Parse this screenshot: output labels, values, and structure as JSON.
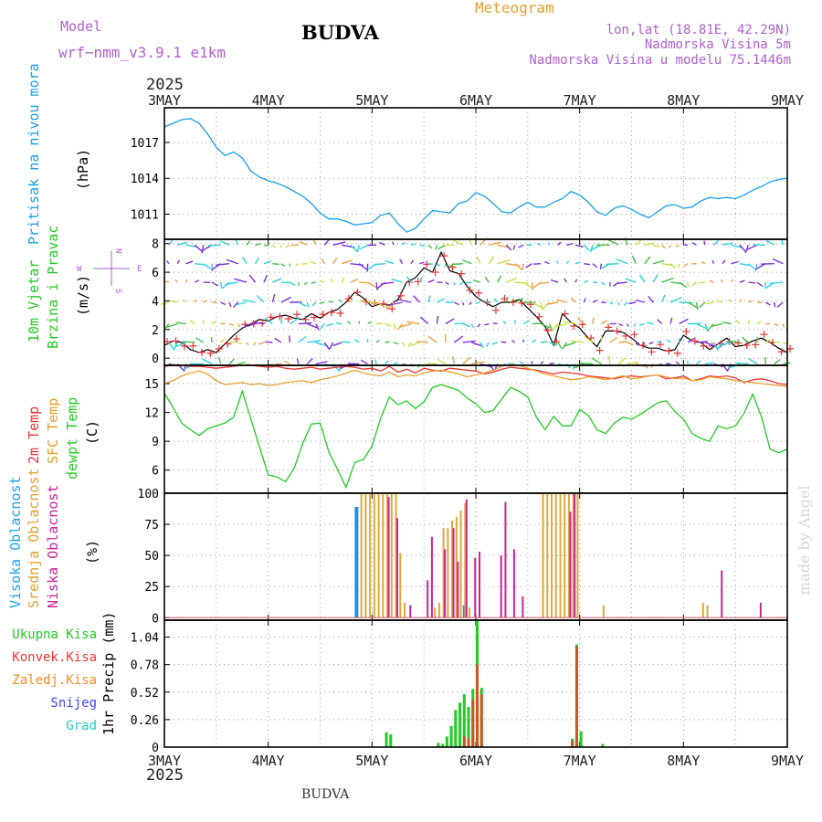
{
  "header": {
    "model_label": "Model",
    "model_name": "wrf−nmm_v3.9.1  e1km",
    "station": "BUDVA",
    "meteogram": "Meteogram",
    "lonlat": "lon,lat (18.81E, 42.29N)",
    "altitude": "Nadmorska Visina 5m",
    "model_altitude": "Nadmorska Visina u modelu 75.1446m",
    "year_top": "2025",
    "year_bottom": "2025",
    "footer_station": "BUDVA",
    "watermark": "made by Angel"
  },
  "days": [
    "3MAY",
    "4MAY",
    "5MAY",
    "6MAY",
    "7MAY",
    "8MAY",
    "9MAY"
  ],
  "panels": {
    "pressure": {
      "label": "Pritisak na nivou mora",
      "unit": "(hPa)"
    },
    "wind": {
      "label1": "10m Vjetar",
      "label2": "Brzina i Pravac",
      "unit": "(m/s)",
      "compass": {
        "n": "N",
        "s": "S",
        "e": "E",
        "w": "W"
      }
    },
    "temp": {
      "label1": "2m Temp",
      "label2": "SFC Temp",
      "label3": "dewpt Temp",
      "unit": "(C)"
    },
    "cloud": {
      "label1": "Visoka Oblacnost",
      "label2": "Srednja Oblacnost",
      "label3": "Niska Oblacnost",
      "unit": "(%)"
    },
    "precip": {
      "legend": [
        "Ukupna Kisa",
        "Konvek.Kisa",
        "Zaledj.Kisa",
        "Snijeg",
        "Grad"
      ],
      "legend_colors": [
        "#22cc22",
        "#ff3333",
        "#ff8822",
        "#4444ff",
        "#22cccc"
      ],
      "unit": "1hr Precip (mm)"
    }
  },
  "colors": {
    "pressure": "#1aa0ee",
    "t2m": "#ee3333",
    "sfc": "#e8a030",
    "dew": "#22cc22",
    "high": "#1a90ee",
    "mid": "#e0a838",
    "low": "#cc2299"
  },
  "chart_data": [
    {
      "type": "line",
      "title": "",
      "ylabel": "Pritisak na nivou mora (hPa)",
      "ylim": [
        1008.9,
        1019.9
      ],
      "yticks": [
        1011,
        1014,
        1017
      ],
      "x": [
        0,
        2,
        4,
        6,
        8,
        10,
        12,
        14,
        16,
        18,
        20,
        22,
        24,
        26,
        28,
        30,
        32,
        34,
        36,
        38,
        40,
        42,
        44,
        46,
        48,
        50,
        52,
        54,
        56,
        58,
        60,
        62,
        64,
        66,
        68,
        70,
        72,
        74,
        76,
        78,
        80,
        82,
        84,
        86,
        88,
        90,
        92,
        94,
        96,
        98,
        100,
        102,
        104,
        106,
        108,
        110,
        112,
        114,
        116,
        118,
        120,
        122,
        124,
        126,
        128,
        130,
        132,
        134,
        136,
        138,
        140,
        142,
        144
      ],
      "series": [
        {
          "values": [
            1018.3,
            1018.6,
            1018.9,
            1019.0,
            1018.6,
            1017.7,
            1016.6,
            1015.9,
            1016.2,
            1015.7,
            1014.6,
            1014.1,
            1013.8,
            1013.6,
            1013.3,
            1012.9,
            1012.5,
            1011.9,
            1011.1,
            1010.6,
            1010.6,
            1010.4,
            1010.1,
            1010.2,
            1010.3,
            1010.9,
            1011.1,
            1010.2,
            1009.5,
            1009.8,
            1010.6,
            1011.3,
            1011.2,
            1011.1,
            1011.9,
            1012.1,
            1012.8,
            1012.5,
            1011.9,
            1011.2,
            1011.1,
            1011.6,
            1012.0,
            1011.6,
            1011.6,
            1012.0,
            1012.3,
            1012.9,
            1012.6,
            1012.0,
            1011.2,
            1010.9,
            1011.5,
            1011.7,
            1011.4,
            1011.0,
            1010.7,
            1011.2,
            1011.7,
            1011.8,
            1011.5,
            1011.6,
            1012.1,
            1012.4,
            1012.3,
            1012.4,
            1012.3,
            1012.6,
            1013.0,
            1013.3,
            1013.7,
            1013.9,
            1014.0
          ]
        }
      ]
    },
    {
      "type": "line",
      "title": "",
      "ylabel": "10m Vjetar Brzina i Pravac (m/s)",
      "ylim": [
        -0.5,
        8.3
      ],
      "yticks": [
        0,
        2,
        4,
        6,
        8
      ],
      "x": [
        0,
        2,
        4,
        6,
        8,
        10,
        12,
        14,
        16,
        18,
        20,
        22,
        24,
        26,
        28,
        30,
        32,
        34,
        36,
        38,
        40,
        42,
        44,
        46,
        48,
        50,
        52,
        54,
        56,
        58,
        60,
        62,
        64,
        66,
        68,
        70,
        72,
        74,
        76,
        78,
        80,
        82,
        84,
        86,
        88,
        90,
        92,
        94,
        96,
        98,
        100,
        102,
        104,
        106,
        108,
        110,
        112,
        114,
        116,
        118,
        120,
        122,
        124,
        126,
        128,
        130,
        132,
        134,
        136,
        138,
        140,
        142,
        144
      ],
      "series": [
        {
          "values": [
            0.9,
            1.2,
            1.1,
            0.6,
            0.4,
            0.6,
            0.4,
            1.0,
            1.6,
            2.1,
            2.4,
            2.7,
            2.6,
            2.9,
            3.0,
            2.8,
            2.7,
            3.1,
            2.8,
            3.2,
            3.4,
            3.9,
            4.6,
            4.2,
            3.6,
            3.8,
            3.7,
            4.1,
            5.3,
            5.6,
            6.3,
            6.0,
            7.4,
            6.1,
            5.9,
            5.0,
            4.3,
            3.9,
            3.6,
            3.9,
            3.9,
            4.1,
            3.5,
            2.9,
            2.2,
            0.9,
            3.1,
            2.5,
            2.1,
            1.4,
            0.8,
            1.9,
            1.9,
            1.8,
            1.4,
            0.9,
            0.7,
            0.7,
            0.5,
            0.6,
            1.6,
            1.2,
            1.1,
            0.6,
            1.0,
            1.4,
            0.8,
            0.9,
            1.2,
            1.4,
            1.1,
            0.7,
            0.4
          ]
        }
      ]
    },
    {
      "type": "line",
      "title": "",
      "ylabel": "Temp (C)",
      "ylim": [
        3.6,
        16.9
      ],
      "yticks": [
        6,
        9,
        12,
        15
      ],
      "x": [
        0,
        2,
        4,
        6,
        8,
        10,
        12,
        14,
        16,
        18,
        20,
        22,
        24,
        26,
        28,
        30,
        32,
        34,
        36,
        38,
        40,
        42,
        44,
        46,
        48,
        50,
        52,
        54,
        56,
        58,
        60,
        62,
        64,
        66,
        68,
        70,
        72,
        74,
        76,
        78,
        80,
        82,
        84,
        86,
        88,
        90,
        92,
        94,
        96,
        98,
        100,
        102,
        104,
        106,
        108,
        110,
        112,
        114,
        116,
        118,
        120,
        122,
        124,
        126,
        128,
        130,
        132,
        134,
        136,
        138,
        140,
        142,
        144
      ],
      "series": [
        {
          "name": "2m Temp",
          "values": [
            16.8,
            16.9,
            16.9,
            16.8,
            16.8,
            16.7,
            16.6,
            16.7,
            16.8,
            16.9,
            16.9,
            16.8,
            16.7,
            16.8,
            16.6,
            16.5,
            16.6,
            16.7,
            16.5,
            16.6,
            16.7,
            16.8,
            16.7,
            16.5,
            16.6,
            16.3,
            16.8,
            16.2,
            16.5,
            16.1,
            16.6,
            16.4,
            16.3,
            16.6,
            16.5,
            16.4,
            16.3,
            16.0,
            16.2,
            16.5,
            16.7,
            16.6,
            16.5,
            16.4,
            16.2,
            16.0,
            16.2,
            16.1,
            16.0,
            15.8,
            15.7,
            15.6,
            15.5,
            15.7,
            15.8,
            15.7,
            15.8,
            15.9,
            15.5,
            15.6,
            15.8,
            15.3,
            15.5,
            15.8,
            15.7,
            15.8,
            15.6,
            15.1,
            15.4,
            15.5,
            15.3,
            15.0,
            14.9
          ]
        },
        {
          "name": "SFC Temp",
          "values": [
            15.0,
            15.3,
            15.8,
            16.1,
            16.3,
            16.0,
            15.3,
            14.9,
            15.0,
            15.1,
            14.9,
            15.0,
            14.8,
            14.9,
            15.1,
            15.2,
            15.3,
            15.1,
            15.4,
            15.6,
            15.8,
            16.1,
            16.4,
            16.1,
            15.9,
            15.8,
            16.2,
            15.7,
            15.9,
            15.8,
            16.1,
            16.3,
            16.4,
            16.2,
            16.0,
            15.7,
            15.9,
            16.1,
            16.4,
            16.8,
            17.0,
            16.9,
            16.6,
            16.3,
            16.0,
            15.8,
            15.6,
            15.4,
            15.5,
            15.7,
            15.6,
            15.4,
            15.6,
            15.8,
            15.5,
            15.6,
            15.8,
            15.9,
            15.7,
            15.5,
            15.6,
            15.3,
            15.4,
            15.7,
            15.6,
            15.5,
            15.3,
            15.2,
            15.1,
            15.0,
            14.9,
            14.8,
            14.7
          ]
        },
        {
          "name": "dewpt Temp",
          "values": [
            14.0,
            12.5,
            10.9,
            10.2,
            9.6,
            10.3,
            10.6,
            10.9,
            11.5,
            14.2,
            11.3,
            8.4,
            5.5,
            5.3,
            4.8,
            6.2,
            8.8,
            10.8,
            10.9,
            7.9,
            6.1,
            4.2,
            6.8,
            7.1,
            8.5,
            11.4,
            13.6,
            12.8,
            13.2,
            12.4,
            13.1,
            14.6,
            14.9,
            14.6,
            14.3,
            13.5,
            12.9,
            12.0,
            12.2,
            13.4,
            14.6,
            14.2,
            13.6,
            11.5,
            10.2,
            11.6,
            10.6,
            10.6,
            12.3,
            11.7,
            10.2,
            9.8,
            10.9,
            11.5,
            11.3,
            11.8,
            12.4,
            13.0,
            13.2,
            12.1,
            11.3,
            9.8,
            9.3,
            9.0,
            10.6,
            10.3,
            10.6,
            11.9,
            13.9,
            11.6,
            8.2,
            7.8,
            8.2
          ]
        }
      ]
    },
    {
      "type": "bar",
      "title": "",
      "ylabel": "Oblacnost (%)",
      "ylim": [
        -2,
        100
      ],
      "yticks": [
        0,
        25,
        50,
        75,
        100
      ],
      "series": [
        {
          "name": "Visoka Oblacnost",
          "x": [
            44,
            69
          ],
          "values": [
            89,
            10
          ]
        },
        {
          "name": "Srednja Oblacnost",
          "x": [
            45,
            46,
            47,
            48,
            49,
            50,
            51,
            52,
            53,
            54,
            55,
            62,
            63,
            64,
            65,
            66,
            67,
            68,
            69,
            70,
            87,
            88,
            89,
            90,
            91,
            92,
            93,
            94,
            95,
            101,
            124,
            125
          ],
          "values": [
            100,
            100,
            100,
            100,
            100,
            100,
            100,
            100,
            100,
            52,
            12,
            8,
            12,
            72,
            72,
            78,
            81,
            86,
            92,
            8,
            100,
            100,
            100,
            100,
            100,
            100,
            100,
            100,
            100,
            10,
            12,
            10
          ]
        },
        {
          "name": "Niska Oblacnost",
          "x": [
            51,
            53,
            56,
            60,
            61,
            64,
            66,
            67,
            69,
            71,
            72,
            77,
            78,
            80,
            82,
            93,
            94,
            128,
            137
          ],
          "values": [
            97,
            80,
            10,
            30,
            65,
            55,
            72,
            45,
            95,
            48,
            53,
            50,
            93,
            55,
            17,
            85,
            100,
            38,
            12
          ]
        }
      ]
    },
    {
      "type": "bar",
      "title": "",
      "ylabel": "1hr Precip (mm)",
      "ylim": [
        0,
        1.2
      ],
      "yticks": [
        0,
        0.26,
        0.52,
        0.78,
        1.04
      ],
      "series": [
        {
          "name": "Ukupna Kisa",
          "x": [
            51,
            52,
            63,
            64,
            65,
            66,
            67,
            68,
            69,
            70,
            71,
            72,
            73,
            94,
            95,
            96,
            101
          ],
          "values": [
            0.14,
            0.12,
            0.04,
            0.03,
            0.1,
            0.2,
            0.35,
            0.42,
            0.5,
            0.38,
            0.55,
            1.2,
            0.56,
            0.08,
            0.97,
            0.15,
            0.03
          ]
        },
        {
          "name": "Konvek.Kisa",
          "x": [
            69,
            70,
            71,
            72,
            73,
            94,
            95
          ],
          "values": [
            0.1,
            0.08,
            0.45,
            0.78,
            0.5,
            0.06,
            0.95
          ]
        }
      ]
    }
  ]
}
